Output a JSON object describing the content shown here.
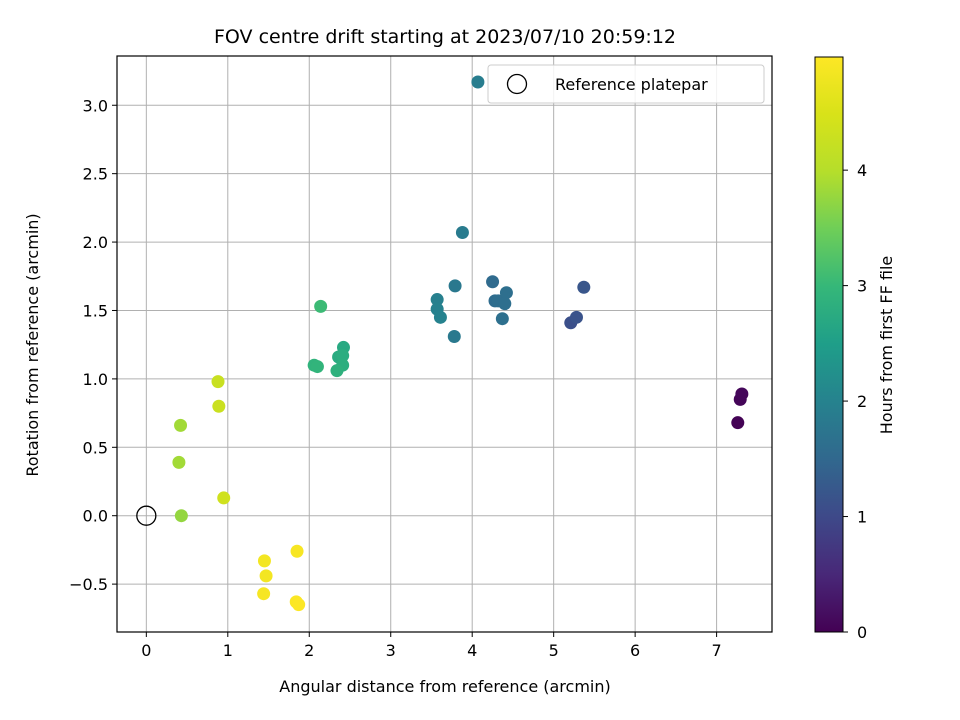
{
  "chart_data": {
    "type": "scatter",
    "title": "FOV centre drift starting at 2023/07/10 20:59:12",
    "xlabel": "Angular distance from reference (arcmin)",
    "ylabel": "Rotation from reference (arcmin)",
    "xlim": [
      -0.36,
      7.68
    ],
    "ylim": [
      -0.85,
      3.36
    ],
    "xticks": [
      "0",
      "1",
      "2",
      "3",
      "4",
      "5",
      "6",
      "7"
    ],
    "yticks": [
      "−0.5",
      "0.0",
      "0.5",
      "1.0",
      "1.5",
      "2.0",
      "2.5",
      "3.0"
    ],
    "grid": true,
    "colorbar": {
      "label": "Hours from first FF file",
      "colormap": "viridis",
      "range": [
        0,
        4.98
      ],
      "ticks": [
        "0",
        "1",
        "2",
        "3",
        "4"
      ]
    },
    "legend": {
      "position": "top-right",
      "entries": [
        "Reference platepar"
      ]
    },
    "reference_point": {
      "x": 0,
      "y": 0
    },
    "points": [
      {
        "x": 7.26,
        "y": 0.68,
        "hours": 0.02
      },
      {
        "x": 7.29,
        "y": 0.85,
        "hours": 0.05
      },
      {
        "x": 7.31,
        "y": 0.89,
        "hours": 0.08
      },
      {
        "x": 5.21,
        "y": 1.41,
        "hours": 1.1
      },
      {
        "x": 5.28,
        "y": 1.45,
        "hours": 1.15
      },
      {
        "x": 5.37,
        "y": 1.67,
        "hours": 1.2
      },
      {
        "x": 4.25,
        "y": 1.71,
        "hours": 1.55
      },
      {
        "x": 4.28,
        "y": 1.57,
        "hours": 1.58
      },
      {
        "x": 4.32,
        "y": 1.57,
        "hours": 1.6
      },
      {
        "x": 4.42,
        "y": 1.63,
        "hours": 1.62
      },
      {
        "x": 4.4,
        "y": 1.55,
        "hours": 1.63
      },
      {
        "x": 4.37,
        "y": 1.44,
        "hours": 1.65
      },
      {
        "x": 4.07,
        "y": 3.17,
        "hours": 1.9
      },
      {
        "x": 3.88,
        "y": 2.07,
        "hours": 1.85
      },
      {
        "x": 3.79,
        "y": 1.68,
        "hours": 1.8
      },
      {
        "x": 3.78,
        "y": 1.31,
        "hours": 1.82
      },
      {
        "x": 3.57,
        "y": 1.58,
        "hours": 1.95
      },
      {
        "x": 3.57,
        "y": 1.51,
        "hours": 1.97
      },
      {
        "x": 3.61,
        "y": 1.45,
        "hours": 2.0
      },
      {
        "x": 2.14,
        "y": 1.53,
        "hours": 3.05
      },
      {
        "x": 2.42,
        "y": 1.23,
        "hours": 2.7
      },
      {
        "x": 2.36,
        "y": 1.16,
        "hours": 2.75
      },
      {
        "x": 2.41,
        "y": 1.17,
        "hours": 2.78
      },
      {
        "x": 2.41,
        "y": 1.1,
        "hours": 2.8
      },
      {
        "x": 2.34,
        "y": 1.06,
        "hours": 2.85
      },
      {
        "x": 2.06,
        "y": 1.1,
        "hours": 2.9
      },
      {
        "x": 2.1,
        "y": 1.09,
        "hours": 2.92
      },
      {
        "x": 0.42,
        "y": 0.66,
        "hours": 3.85
      },
      {
        "x": 0.4,
        "y": 0.39,
        "hours": 3.85
      },
      {
        "x": 0.43,
        "y": 0.0,
        "hours": 3.75
      },
      {
        "x": 0.88,
        "y": 0.98,
        "hours": 4.25
      },
      {
        "x": 0.89,
        "y": 0.8,
        "hours": 4.28
      },
      {
        "x": 0.95,
        "y": 0.13,
        "hours": 4.35
      },
      {
        "x": 1.45,
        "y": -0.33,
        "hours": 4.85
      },
      {
        "x": 1.47,
        "y": -0.44,
        "hours": 4.85
      },
      {
        "x": 1.44,
        "y": -0.57,
        "hours": 4.88
      },
      {
        "x": 1.85,
        "y": -0.26,
        "hours": 4.9
      },
      {
        "x": 1.84,
        "y": -0.63,
        "hours": 4.95
      },
      {
        "x": 1.87,
        "y": -0.65,
        "hours": 4.97
      }
    ]
  }
}
